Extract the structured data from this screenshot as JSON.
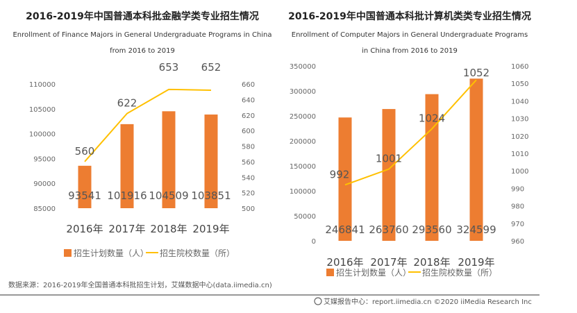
{
  "colors": {
    "bar": "#ED7D31",
    "line": "#FFC000"
  },
  "chart_data": [
    {
      "type": "bar+line",
      "title": "2016-2019年中国普通本科批金融学类专业招生情况",
      "subtitle": [
        "Enrollment of Finance Majors in General Undergraduate Programs in China",
        "from 2016 to 2019"
      ],
      "categories": [
        "2016年",
        "2017年",
        "2018年",
        "2019年"
      ],
      "series": [
        {
          "name": "招生计划数量（人）",
          "type": "bar",
          "axis": "left",
          "values": [
            93541,
            101916,
            104509,
            103851
          ]
        },
        {
          "name": "招生院校数量（所）",
          "type": "line",
          "axis": "right",
          "values": [
            560,
            622,
            653,
            652
          ]
        }
      ],
      "ylim_left": [
        85000,
        110000
      ],
      "yticks_left": [
        "85000",
        "90000",
        "95000",
        "100000",
        "105000",
        "110000"
      ],
      "ylim_right": [
        500,
        660
      ],
      "yticks_right": [
        "500",
        "520",
        "540",
        "560",
        "580",
        "600",
        "620",
        "640",
        "660"
      ],
      "grid": false,
      "legend": "bottom"
    },
    {
      "type": "bar+line",
      "title": "2016-2019年中国普通本科批计算机类类专业招生情况",
      "subtitle": [
        "Enrollment of Computer Majors in General Undergraduate Programs",
        "in China from 2016 to 2019"
      ],
      "categories": [
        "2016年",
        "2017年",
        "2018年",
        "2019年"
      ],
      "series": [
        {
          "name": "招生计划数量（人）",
          "type": "bar",
          "axis": "left",
          "values": [
            246841,
            263760,
            293560,
            324599
          ]
        },
        {
          "name": "招生院校数量（所）",
          "type": "line",
          "axis": "right",
          "values": [
            992,
            1001,
            1024,
            1052
          ]
        }
      ],
      "ylim_left": [
        0,
        350000
      ],
      "yticks_left": [
        "0",
        "50000",
        "100000",
        "150000",
        "200000",
        "250000",
        "300000",
        "350000"
      ],
      "ylim_right": [
        960,
        1060
      ],
      "yticks_right": [
        "960",
        "970",
        "980",
        "990",
        "1000",
        "1010",
        "1020",
        "1030",
        "1040",
        "1050",
        "1060"
      ],
      "grid": false,
      "legend": "bottom"
    }
  ],
  "footer": {
    "source": "数据来源：2016-2019年全国普通本科批招生计划，艾媒数据中心(data.iimedia.cn)",
    "credit": "艾媒报告中心：report.iimedia.cn  ©2020  iiMedia Research  Inc"
  }
}
